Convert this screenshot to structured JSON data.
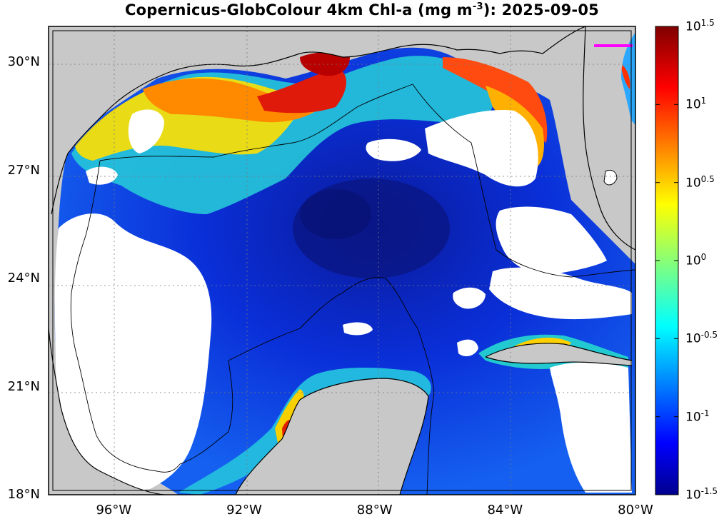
{
  "title": {
    "prefix": "Copernicus-GlobColour 4km Chl-a (mg m",
    "exponent": "-3",
    "suffix": "): 2025-09-05"
  },
  "map": {
    "lat_ticks": [
      {
        "label": "30°N",
        "value": 30
      },
      {
        "label": "27°N",
        "value": 27
      },
      {
        "label": "24°N",
        "value": 24
      },
      {
        "label": "21°N",
        "value": 21
      },
      {
        "label": "18°N",
        "value": 18
      }
    ],
    "lon_ticks": [
      {
        "label": "96°W",
        "value": -96
      },
      {
        "label": "92°W",
        "value": -92
      },
      {
        "label": "88°W",
        "value": -88
      },
      {
        "label": "84°W",
        "value": -84
      },
      {
        "label": "80°W",
        "value": -80
      }
    ],
    "lat_range": [
      18,
      31
    ],
    "lon_range": [
      -98,
      -80
    ],
    "grid": true,
    "colors": {
      "land": "#c8c8c8",
      "no_data": "#ffffff",
      "deep_blue": "#0a1fc8",
      "coastal_red": "#d42010",
      "eez_line": "#000000",
      "marker": "#ff00ff"
    }
  },
  "colorbar": {
    "scale": "log10",
    "range": [
      -1.5,
      1.5
    ],
    "ticks": [
      {
        "base": "10",
        "exp": "1.5",
        "value": 1.5
      },
      {
        "base": "10",
        "exp": "1",
        "value": 1
      },
      {
        "base": "10",
        "exp": "0.5",
        "value": 0.5
      },
      {
        "base": "10",
        "exp": "0",
        "value": 0
      },
      {
        "base": "10",
        "exp": "-0.5",
        "value": -0.5
      },
      {
        "base": "10",
        "exp": "-1",
        "value": -1
      },
      {
        "base": "10",
        "exp": "-1.5",
        "value": -1.5
      }
    ],
    "colormap": "jet"
  }
}
